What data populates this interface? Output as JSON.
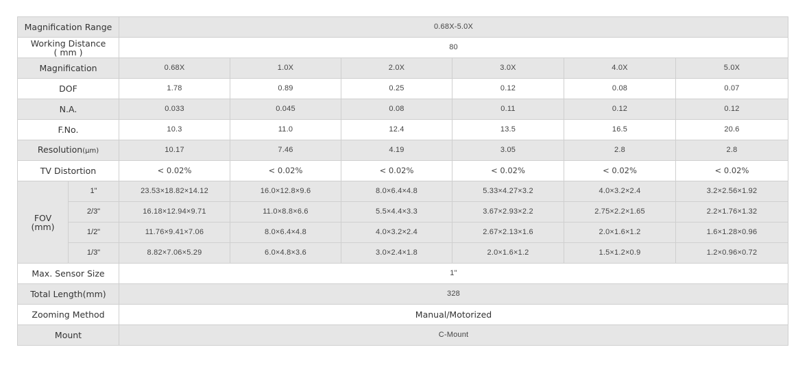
{
  "spec_table": {
    "magnification_range": {
      "label": "Magnification Range",
      "value": "0.68X-5.0X"
    },
    "working_distance": {
      "label_line1": "Working Distance",
      "label_line2": "( mm )",
      "value": "80"
    },
    "magnification": {
      "label": "Magnification",
      "values": [
        "0.68X",
        "1.0X",
        "2.0X",
        "3.0X",
        "4.0X",
        "5.0X"
      ]
    },
    "dof": {
      "label": "DOF",
      "values": [
        "1.78",
        "0.89",
        "0.25",
        "0.12",
        "0.08",
        "0.07"
      ]
    },
    "na": {
      "label": "N.A.",
      "values": [
        "0.033",
        "0.045",
        "0.08",
        "0.11",
        "0.12",
        "0.12"
      ]
    },
    "fno": {
      "label": "F.No.",
      "values": [
        "10.3",
        "11.0",
        "12.4",
        "13.5",
        "16.5",
        "20.6"
      ]
    },
    "resolution": {
      "label": "Resolution",
      "unit": "(μm)",
      "values": [
        "10.17",
        "7.46",
        "4.19",
        "3.05",
        "2.8",
        "2.8"
      ]
    },
    "tv_distortion": {
      "label": "TV Distortion",
      "values": [
        "< 0.02%",
        "< 0.02%",
        "< 0.02%",
        "< 0.02%",
        "< 0.02%",
        "< 0.02%"
      ]
    },
    "fov": {
      "label_line1": "FOV",
      "label_line2": "(mm)",
      "rows": [
        {
          "sensor": "1\"",
          "values": [
            "23.53×18.82×14.12",
            "16.0×12.8×9.6",
            "8.0×6.4×4.8",
            "5.33×4.27×3.2",
            "4.0×3.2×2.4",
            "3.2×2.56×1.92"
          ]
        },
        {
          "sensor": "2/3\"",
          "values": [
            "16.18×12.94×9.71",
            "11.0×8.8×6.6",
            "5.5×4.4×3.3",
            "3.67×2.93×2.2",
            "2.75×2.2×1.65",
            "2.2×1.76×1.32"
          ]
        },
        {
          "sensor": "1/2\"",
          "values": [
            "11.76×9.41×7.06",
            "8.0×6.4×4.8",
            "4.0×3.2×2.4",
            "2.67×2.13×1.6",
            "2.0×1.6×1.2",
            "1.6×1.28×0.96"
          ]
        },
        {
          "sensor": "1/3\"",
          "values": [
            "8.82×7.06×5.29",
            "6.0×4.8×3.6",
            "3.0×2.4×1.8",
            "2.0×1.6×1.2",
            "1.5×1.2×0.9",
            "1.2×0.96×0.72"
          ]
        }
      ]
    },
    "max_sensor_size": {
      "label": "Max. Sensor Size",
      "value": "1\""
    },
    "total_length": {
      "label": "Total Length(mm)",
      "value": "328"
    },
    "zooming_method": {
      "label": "Zooming Method",
      "value": "Manual/Motorized"
    },
    "mount": {
      "label": "Mount",
      "value": "C-Mount"
    }
  }
}
